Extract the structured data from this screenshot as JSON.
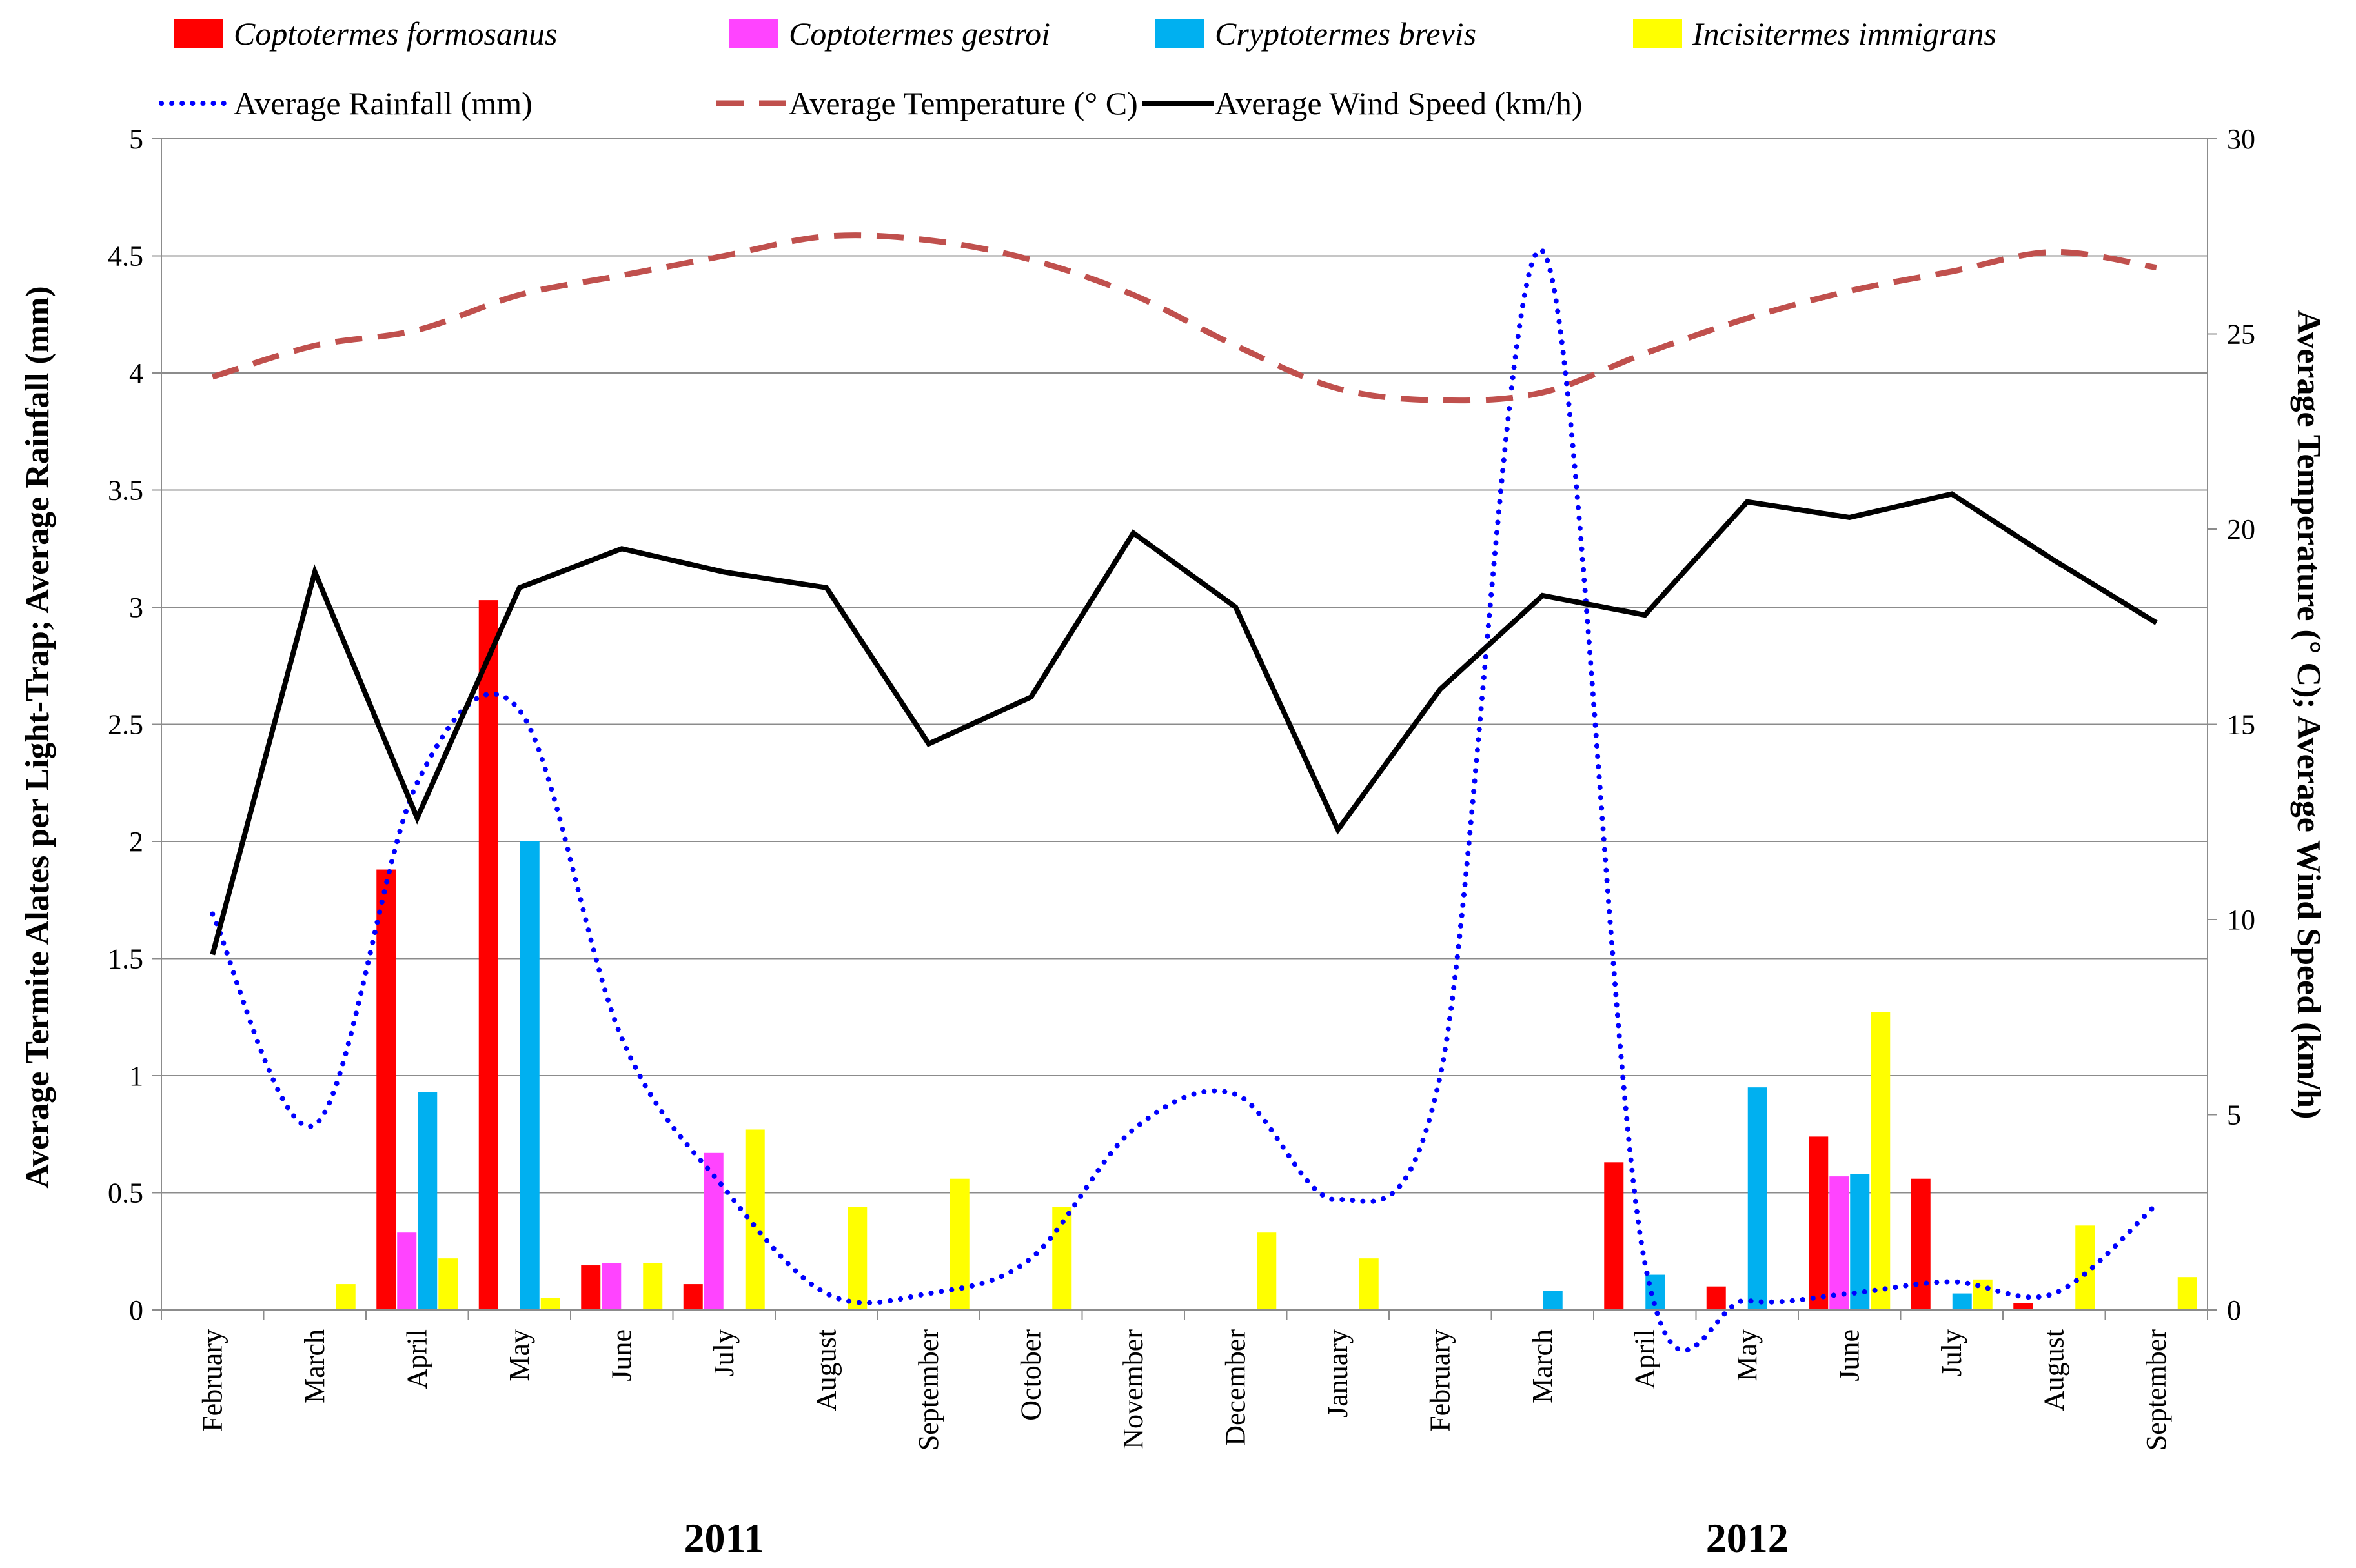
{
  "chart_data": {
    "type": "bar",
    "categories": [
      "February",
      "March",
      "April",
      "May",
      "June",
      "July",
      "August",
      "September",
      "October",
      "November",
      "December",
      "January",
      "February",
      "March",
      "April",
      "May",
      "June",
      "July",
      "August",
      "September"
    ],
    "years": [
      {
        "label": "2011",
        "start_index": 0,
        "end_index": 10
      },
      {
        "label": "2012",
        "start_index": 11,
        "end_index": 19
      }
    ],
    "left_axis": {
      "label": "Average Termite Alates per Light-Trap; Average Rainfall (mm)",
      "range": [
        0,
        5
      ],
      "ticks": [
        "0",
        "0.5",
        "1",
        "1.5",
        "2",
        "2.5",
        "3",
        "3.5",
        "4",
        "4.5",
        "5"
      ]
    },
    "right_axis": {
      "label": "Average Temperature (° C); Average Wind Speed (km/h)",
      "range": [
        0,
        30
      ],
      "ticks": [
        "0",
        "5",
        "10",
        "15",
        "20",
        "25",
        "30"
      ]
    },
    "grid": true,
    "legend_position": "top",
    "bar_series": [
      {
        "name": "Coptotermes formosanus",
        "color": "#ff0000",
        "values": [
          0,
          0,
          1.88,
          3.03,
          0.19,
          0.11,
          0,
          0,
          0,
          0,
          0,
          0,
          0,
          0,
          0.63,
          0.1,
          0.74,
          0.56,
          0.03,
          0
        ]
      },
      {
        "name": "Coptotermes gestroi",
        "color": "#ff44ff",
        "values": [
          0,
          0,
          0.33,
          0,
          0.2,
          0.67,
          0,
          0,
          0,
          0,
          0,
          0,
          0,
          0,
          0,
          0,
          0.57,
          0,
          0,
          0
        ]
      },
      {
        "name": "Cryptotermes brevis",
        "color": "#00b0f0",
        "values": [
          0,
          0,
          0.93,
          2.0,
          0,
          0,
          0,
          0,
          0,
          0,
          0,
          0,
          0,
          0.08,
          0.15,
          0.95,
          0.58,
          0.07,
          0,
          0
        ]
      },
      {
        "name": "Incisitermes immigrans",
        "color": "#ffff00",
        "values": [
          0,
          0.11,
          0.22,
          0.05,
          0.2,
          0.77,
          0.44,
          0.56,
          0.44,
          0,
          0.33,
          0.22,
          0,
          0,
          0,
          0,
          1.27,
          0.13,
          0.36,
          0.14
        ]
      }
    ],
    "line_series": [
      {
        "name": "Average Rainfall (mm)",
        "axis": "left",
        "color": "#0000ff",
        "style": "dotted",
        "values": [
          1.69,
          0.79,
          2.25,
          2.56,
          1.16,
          0.52,
          0.07,
          0.07,
          0.22,
          0.77,
          0.92,
          0.47,
          1.0,
          4.52,
          0.2,
          0.04,
          0.07,
          0.12,
          0.07,
          0.45
        ]
      },
      {
        "name": "Average Temperature (° C)",
        "axis": "right",
        "color": "#c0504d",
        "style": "dashed",
        "values": [
          23.9,
          24.7,
          25.1,
          26.0,
          26.5,
          27.0,
          27.5,
          27.4,
          26.9,
          26.0,
          24.7,
          23.6,
          23.3,
          23.5,
          24.5,
          25.4,
          26.1,
          26.6,
          27.1,
          26.7
        ]
      },
      {
        "name": "Average Wind Speed (km/h)",
        "axis": "right",
        "color": "#000000",
        "style": "solid",
        "values": [
          9.1,
          18.9,
          12.6,
          18.5,
          19.5,
          18.9,
          18.5,
          14.5,
          15.7,
          19.9,
          18.0,
          12.3,
          15.9,
          18.3,
          17.8,
          20.7,
          20.3,
          20.9,
          19.2,
          17.6
        ]
      }
    ],
    "legend": [
      {
        "label": "Coptotermes formosanus",
        "kind": "bar",
        "color": "#ff0000"
      },
      {
        "label": "Coptotermes gestroi",
        "kind": "bar",
        "color": "#ff44ff"
      },
      {
        "label": "Cryptotermes brevis",
        "kind": "bar",
        "color": "#00b0f0"
      },
      {
        "label": "Incisitermes immigrans",
        "kind": "bar",
        "color": "#ffff00"
      },
      {
        "label": "Average Rainfall (mm)",
        "kind": "dotted",
        "color": "#0000ff"
      },
      {
        "label": "Average Temperature (° C)",
        "kind": "dashed",
        "color": "#c0504d"
      },
      {
        "label": "Average Wind Speed (km/h)",
        "kind": "solid",
        "color": "#000000"
      }
    ]
  }
}
